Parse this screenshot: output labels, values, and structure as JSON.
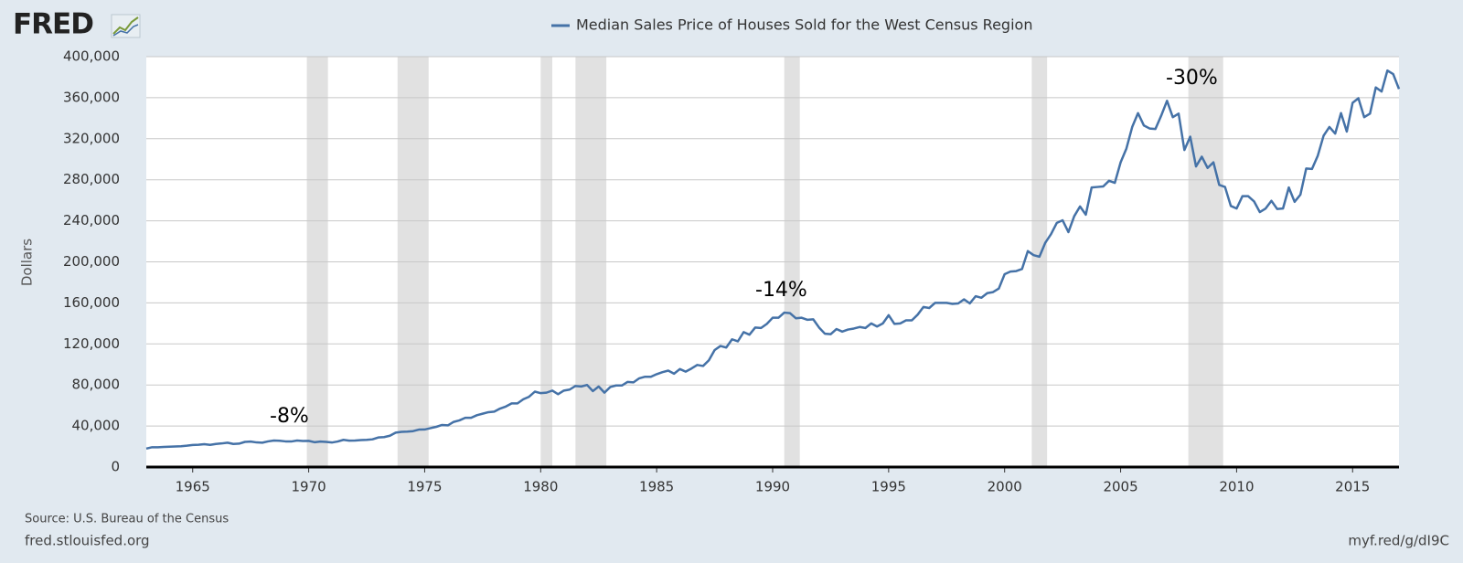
{
  "chart_data": {
    "type": "line",
    "logo": "FRED",
    "ylabel": "Dollars",
    "source": "Source: U.S. Bureau of the Census",
    "site": "fred.stlouisfed.org",
    "link": "myf.red/g/dI9C",
    "annotations": [
      "-8%",
      "-14%",
      "-30%"
    ],
    "grid": true,
    "xlim": [
      1963,
      2017
    ],
    "xticks": [
      1965,
      1970,
      1975,
      1980,
      1985,
      1990,
      1995,
      2000,
      2005,
      2010,
      2015
    ],
    "ylim": [
      0,
      400000
    ],
    "yticks": [
      0,
      {
        "value": 40000,
        "label": "40,000"
      },
      {
        "value": 80000,
        "label": "80,000"
      },
      {
        "value": 120000,
        "label": "120,000"
      },
      {
        "value": 160000,
        "label": "160,000"
      },
      {
        "value": 200000,
        "label": "200,000"
      },
      {
        "value": 240000,
        "label": "240,000"
      },
      {
        "value": 280000,
        "label": "280,000"
      },
      {
        "value": 320000,
        "label": "320,000"
      },
      {
        "value": 360000,
        "label": "360,000"
      },
      {
        "value": 400000,
        "label": "400,000"
      }
    ],
    "recessions": [
      [
        1969.92,
        1970.83
      ],
      [
        1973.83,
        1975.17
      ],
      [
        1980.0,
        1980.5
      ],
      [
        1981.5,
        1982.83
      ],
      [
        1990.5,
        1991.17
      ],
      [
        2001.17,
        2001.83
      ],
      [
        2007.92,
        2009.42
      ]
    ],
    "x": [
      1963,
      1963.25,
      1963.5,
      1963.75,
      1964,
      1964.25,
      1964.5,
      1964.75,
      1965,
      1965.25,
      1965.5,
      1965.75,
      1966,
      1966.25,
      1966.5,
      1966.75,
      1967,
      1967.25,
      1967.5,
      1967.75,
      1968,
      1968.25,
      1968.5,
      1968.75,
      1969,
      1969.25,
      1969.5,
      1969.75,
      1970,
      1970.25,
      1970.5,
      1970.75,
      1971,
      1971.25,
      1971.5,
      1971.75,
      1972,
      1972.25,
      1972.5,
      1972.75,
      1973,
      1973.25,
      1973.5,
      1973.75,
      1974,
      1974.25,
      1974.5,
      1974.75,
      1975,
      1975.25,
      1975.5,
      1975.75,
      1976,
      1976.25,
      1976.5,
      1976.75,
      1977,
      1977.25,
      1977.5,
      1977.75,
      1978,
      1978.25,
      1978.5,
      1978.75,
      1979,
      1979.25,
      1979.5,
      1979.75,
      1980,
      1980.25,
      1980.5,
      1980.75,
      1981,
      1981.25,
      1981.5,
      1981.75,
      1982,
      1982.25,
      1982.5,
      1982.75,
      1983,
      1983.25,
      1983.5,
      1983.75,
      1984,
      1984.25,
      1984.5,
      1984.75,
      1985,
      1985.25,
      1985.5,
      1985.75,
      1986,
      1986.25,
      1986.5,
      1986.75,
      1987,
      1987.25,
      1987.5,
      1987.75,
      1988,
      1988.25,
      1988.5,
      1988.75,
      1989,
      1989.25,
      1989.5,
      1989.75,
      1990,
      1990.25,
      1990.5,
      1990.75,
      1991,
      1991.25,
      1991.5,
      1991.75,
      1992,
      1992.25,
      1992.5,
      1992.75,
      1993,
      1993.25,
      1993.5,
      1993.75,
      1994,
      1994.25,
      1994.5,
      1994.75,
      1995,
      1995.25,
      1995.5,
      1995.75,
      1996,
      1996.25,
      1996.5,
      1996.75,
      1997,
      1997.25,
      1997.5,
      1997.75,
      1998,
      1998.25,
      1998.5,
      1998.75,
      1999,
      1999.25,
      1999.5,
      1999.75,
      2000,
      2000.25,
      2000.5,
      2000.75,
      2001,
      2001.25,
      2001.5,
      2001.75,
      2002,
      2002.25,
      2002.5,
      2002.75,
      2003,
      2003.25,
      2003.5,
      2003.75,
      2004,
      2004.25,
      2004.5,
      2004.75,
      2005,
      2005.25,
      2005.5,
      2005.75,
      2006,
      2006.25,
      2006.5,
      2006.75,
      2007,
      2007.25,
      2007.5,
      2007.75,
      2008,
      2008.25,
      2008.5,
      2008.75,
      2009,
      2009.25,
      2009.5,
      2009.75,
      2010,
      2010.25,
      2010.5,
      2010.75,
      2011,
      2011.25,
      2011.5,
      2011.75,
      2012,
      2012.25,
      2012.5,
      2012.75,
      2013,
      2013.25,
      2013.5,
      2013.75,
      2014,
      2014.25,
      2014.5,
      2014.75,
      2015,
      2015.25,
      2015.5,
      2015.75,
      2016,
      2016.25,
      2016.5,
      2016.75,
      2017
    ],
    "series": [
      {
        "name": "Median Sales Price of Houses Sold for the West Census Region",
        "color": "#4572a7",
        "values": [
          18000,
          19300,
          19300,
          19600,
          19800,
          20000,
          20300,
          20800,
          21500,
          21700,
          22300,
          21600,
          22500,
          23000,
          23700,
          22500,
          22800,
          24500,
          24800,
          24000,
          23700,
          25000,
          25800,
          25600,
          25000,
          24900,
          25800,
          25400,
          25500,
          24200,
          24800,
          24500,
          23900,
          24900,
          26500,
          25700,
          25800,
          26300,
          26500,
          27000,
          28800,
          29200,
          30500,
          33500,
          34300,
          34500,
          35000,
          36500,
          36600,
          37900,
          39200,
          41000,
          40600,
          44000,
          45500,
          48000,
          48000,
          50500,
          52000,
          53500,
          54000,
          57000,
          59000,
          62000,
          62000,
          66000,
          68500,
          73500,
          72000,
          72500,
          74500,
          71000,
          74500,
          75500,
          79000,
          78500,
          80000,
          74000,
          78500,
          72500,
          78000,
          79500,
          79500,
          83000,
          82500,
          86500,
          88000,
          88000,
          90500,
          92500,
          94000,
          91000,
          95500,
          93000,
          96000,
          99500,
          98500,
          104000,
          114000,
          118000,
          116500,
          124500,
          122500,
          131500,
          129000,
          136000,
          135500,
          139500,
          145500,
          145500,
          150500,
          150000,
          145000,
          145500,
          143500,
          144000,
          136000,
          130000,
          129500,
          134500,
          132000,
          134000,
          135000,
          136500,
          135500,
          140000,
          137000,
          140000,
          148000,
          139500,
          140000,
          143000,
          143000,
          148500,
          156000,
          155000,
          160000,
          160000,
          160000,
          159000,
          159500,
          163500,
          159500,
          166500,
          165000,
          169500,
          170500,
          174000,
          188000,
          190500,
          191000,
          193000,
          210500,
          206500,
          205000,
          218500,
          227000,
          238000,
          240500,
          229000,
          244500,
          254000,
          246000,
          272500,
          273000,
          273500,
          279000,
          277000,
          297000,
          310500,
          331500,
          345000,
          333000,
          330000,
          329500,
          342500,
          357000,
          341000,
          344500,
          309000,
          322000,
          293000,
          302500,
          291500,
          297000,
          275000,
          273000,
          254500,
          252000,
          264000,
          264000,
          259000,
          248500,
          252000,
          259500,
          251500,
          252000,
          272500,
          258500,
          265500,
          291000,
          290500,
          303500,
          323000,
          331500,
          325000,
          345000,
          327000,
          355000,
          359500,
          341000,
          344500,
          370000,
          366000,
          386500,
          383000,
          368500
        ]
      }
    ]
  }
}
